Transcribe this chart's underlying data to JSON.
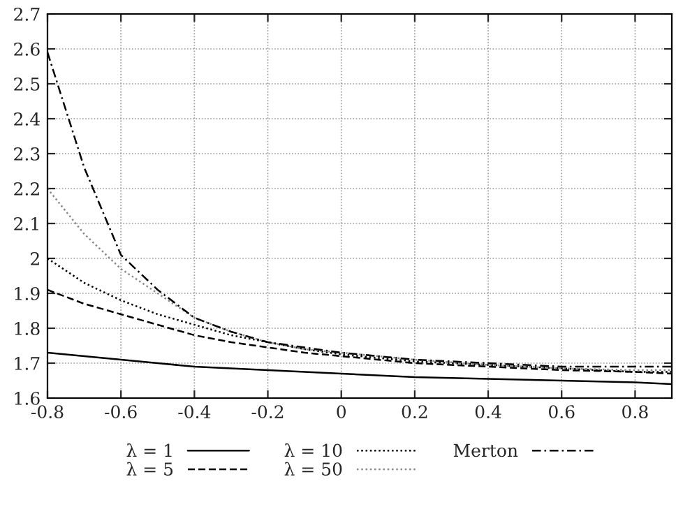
{
  "chart_data": {
    "type": "line",
    "x": [
      -0.8,
      -0.7,
      -0.6,
      -0.5,
      -0.4,
      -0.3,
      -0.2,
      -0.1,
      0,
      0.2,
      0.4,
      0.6,
      0.8,
      0.9
    ],
    "series": [
      {
        "name": "λ = 1",
        "color": "#000000",
        "line_style": "solid",
        "values": [
          1.73,
          1.72,
          1.71,
          1.7,
          1.69,
          1.685,
          1.68,
          1.675,
          1.67,
          1.66,
          1.655,
          1.65,
          1.645,
          1.64
        ]
      },
      {
        "name": "λ = 5",
        "color": "#000000",
        "line_style": "dashed",
        "values": [
          1.91,
          1.87,
          1.84,
          1.81,
          1.78,
          1.76,
          1.745,
          1.73,
          1.72,
          1.7,
          1.69,
          1.68,
          1.675,
          1.67
        ]
      },
      {
        "name": "λ = 10",
        "color": "#000000",
        "line_style": "dotted",
        "values": [
          2.0,
          1.93,
          1.88,
          1.84,
          1.81,
          1.78,
          1.76,
          1.74,
          1.725,
          1.705,
          1.695,
          1.685,
          1.675,
          1.675
        ]
      },
      {
        "name": "λ = 50",
        "color": "#888888",
        "line_style": "dotted",
        "values": [
          2.2,
          2.07,
          1.97,
          1.9,
          1.83,
          1.79,
          1.76,
          1.74,
          1.73,
          1.71,
          1.695,
          1.685,
          1.68,
          1.68
        ]
      },
      {
        "name": "Merton",
        "color": "#000000",
        "line_style": "dashdot",
        "values": [
          2.59,
          2.26,
          2.01,
          1.91,
          1.83,
          1.79,
          1.76,
          1.745,
          1.73,
          1.71,
          1.7,
          1.69,
          1.69,
          1.69
        ]
      }
    ],
    "xlim": [
      -0.8,
      0.9
    ],
    "xticks": [
      -0.8,
      -0.6,
      -0.4,
      -0.2,
      0,
      0.2,
      0.4,
      0.6,
      0.8
    ],
    "ylim": [
      1.6,
      2.7
    ],
    "yticks": [
      1.6,
      1.7,
      1.8,
      1.9,
      2,
      2.1,
      2.2,
      2.3,
      2.4,
      2.5,
      2.6,
      2.7
    ],
    "grid": true,
    "legend": "bottom",
    "marker": "none"
  }
}
